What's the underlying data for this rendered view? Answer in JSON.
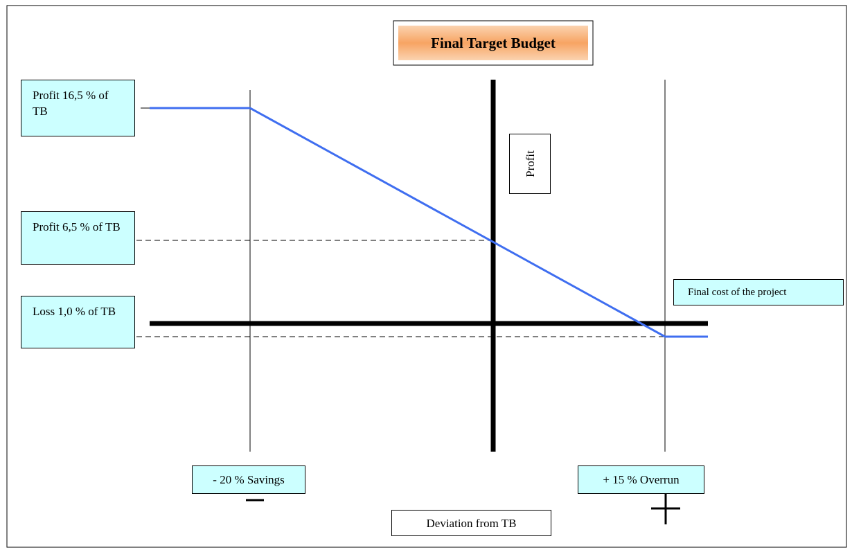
{
  "title": "Final Target Budget",
  "levels": [
    "Profit 16,5 % of TB",
    "Profit 6,5 % of TB",
    "Loss 1,0 % of TB"
  ],
  "vertical_axis_label": "Profit",
  "horizontal_axis_label": "Final cost of the project",
  "deviation_labels": [
    "- 20 % Savings",
    "+ 15 % Overrun"
  ],
  "deviation_axis_label": "Deviation from TB"
}
